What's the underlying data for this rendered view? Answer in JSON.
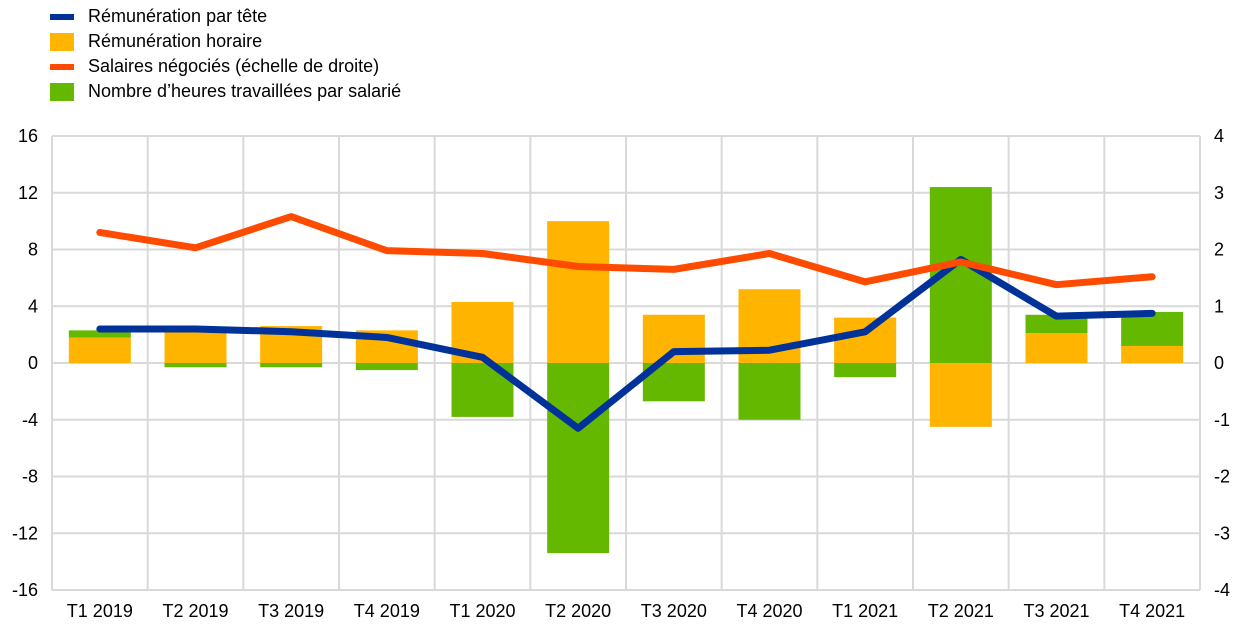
{
  "chart_data": {
    "type": "bar+line",
    "categories": [
      "T1 2019",
      "T2 2019",
      "T3 2019",
      "T4 2019",
      "T1 2020",
      "T2 2020",
      "T3 2020",
      "T4 2020",
      "T1 2021",
      "T2 2021",
      "T3 2021",
      "T4 2021"
    ],
    "series": [
      {
        "name": "Rémunération par tête",
        "type": "line",
        "axis": "left",
        "color": "#003299",
        "values": [
          2.4,
          2.4,
          2.2,
          1.8,
          0.4,
          -4.6,
          0.8,
          0.9,
          2.2,
          7.3,
          3.3,
          3.5
        ]
      },
      {
        "name": "Rémunération horaire",
        "type": "bar",
        "axis": "left",
        "color": "#FFB400",
        "values": [
          1.8,
          2.4,
          2.6,
          2.3,
          4.3,
          10.0,
          3.4,
          5.2,
          3.2,
          -4.5,
          2.1,
          1.2
        ]
      },
      {
        "name": "Salaires négociés (échelle de droite)",
        "type": "line",
        "axis": "right",
        "color": "#FF4B00",
        "values": [
          2.3,
          2.03,
          2.58,
          1.98,
          1.93,
          1.7,
          1.65,
          1.93,
          1.43,
          1.78,
          1.38,
          1.52
        ]
      },
      {
        "name": "Nombre d’heures travaillées par salarié",
        "type": "bar",
        "axis": "left",
        "color": "#65B800",
        "values": [
          0.5,
          -0.3,
          -0.3,
          -0.5,
          -3.8,
          -13.4,
          -2.7,
          -4.0,
          -1.0,
          12.4,
          1.3,
          2.4
        ]
      }
    ],
    "ylim": [
      -16,
      16
    ],
    "yticks": [
      "16",
      "12",
      "8",
      "4",
      "0",
      "-4",
      "-8",
      "-12",
      "-16"
    ],
    "y2lim": [
      -4,
      4
    ],
    "y2ticks": [
      "4",
      "3",
      "2",
      "1",
      "0",
      "-1",
      "-2",
      "-3",
      "-4"
    ],
    "grid": true,
    "legend": "top-left"
  }
}
